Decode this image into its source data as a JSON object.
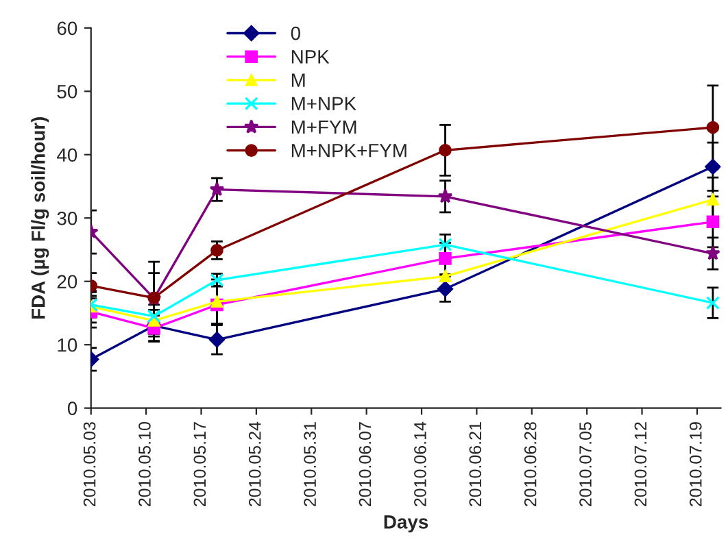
{
  "chart_data": {
    "type": "line",
    "xlabel": "Days",
    "ylabel": "FDA (µg Fl/g soil/hour)",
    "x": [
      "2010-05-03",
      "2010-05-11",
      "2010-05-19",
      "2010-06-17",
      "2010-07-21"
    ],
    "xlim": [
      "2010-05-03",
      "2010-07-22"
    ],
    "xticks": [
      {
        "value": "2010-05-03",
        "label": "2010.05.03"
      },
      {
        "value": "2010-05-10",
        "label": "2010.05.10"
      },
      {
        "value": "2010-05-17",
        "label": "2010.05.17"
      },
      {
        "value": "2010-05-24",
        "label": "2010.05.24"
      },
      {
        "value": "2010-05-31",
        "label": "2010.05.31"
      },
      {
        "value": "2010-06-07",
        "label": "2010.06.07"
      },
      {
        "value": "2010-06-14",
        "label": "2010.06.14"
      },
      {
        "value": "2010-06-21",
        "label": "2010.06.21"
      },
      {
        "value": "2010-06-28",
        "label": "2010.06.28"
      },
      {
        "value": "2010-07-05",
        "label": "2010.07.05"
      },
      {
        "value": "2010-07-12",
        "label": "2010.07.12"
      },
      {
        "value": "2010-07-19",
        "label": "2010.07.19"
      }
    ],
    "ylim": [
      0,
      60
    ],
    "yticks": [
      0,
      10,
      20,
      30,
      40,
      50,
      60
    ],
    "grid": false,
    "legend": "top",
    "line_style": "solid",
    "series": [
      {
        "name": "0",
        "color": "#000080",
        "marker": "diamond",
        "values": [
          7.7,
          13.0,
          10.8,
          18.8,
          38.1
        ],
        "errors": [
          1.8,
          2.5,
          2.3,
          2.0,
          3.8
        ]
      },
      {
        "name": "NPK",
        "color": "#ff00ff",
        "marker": "square",
        "values": [
          15.2,
          12.6,
          16.3,
          23.6,
          29.4
        ],
        "errors": [
          2.5,
          2.0,
          3.0,
          2.5,
          4.0
        ]
      },
      {
        "name": "M",
        "color": "#ffff00",
        "marker": "triangle",
        "values": [
          16.0,
          13.8,
          16.8,
          20.8,
          32.9
        ],
        "errors": [
          2.5,
          2.5,
          3.5,
          null,
          3.5
        ]
      },
      {
        "name": "M+NPK",
        "color": "#00ffff",
        "marker": "cross",
        "values": [
          16.3,
          14.5,
          20.2,
          25.8,
          16.6
        ],
        "errors": [
          2.0,
          null,
          1.0,
          1.6,
          2.4
        ]
      },
      {
        "name": "M+FYM",
        "color": "#800080",
        "marker": "star",
        "values": [
          27.8,
          17.3,
          34.5,
          33.4,
          24.4
        ],
        "errors": [
          3.4,
          4.0,
          1.8,
          2.5,
          2.5
        ]
      },
      {
        "name": "M+NPK+FYM",
        "color": "#800000",
        "marker": "circle",
        "values": [
          19.3,
          17.4,
          24.9,
          40.7,
          44.3
        ],
        "errors": [
          2.0,
          5.7,
          1.4,
          4.0,
          6.6
        ]
      }
    ]
  }
}
